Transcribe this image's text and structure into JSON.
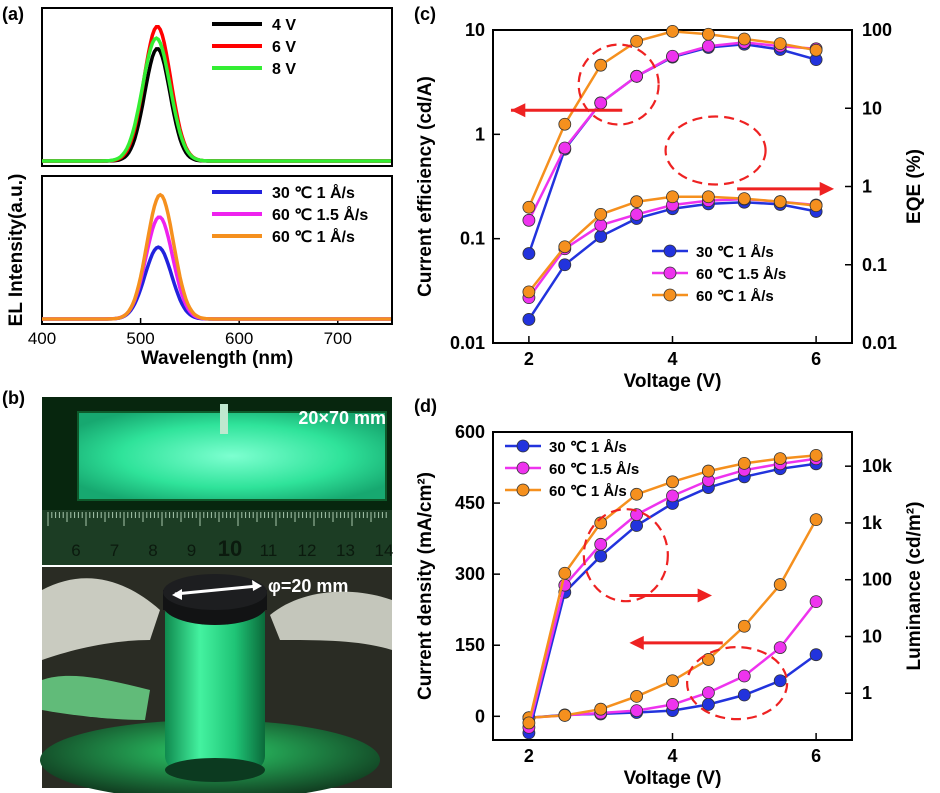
{
  "panels": {
    "a_label": "(a)",
    "b_label": "(b)",
    "c_label": "(c)",
    "d_label": "(d)"
  },
  "photos": {
    "flat_dimension_label": "20×70 mm",
    "ruler_numbers": [
      "6",
      "7",
      "8",
      "9",
      "10",
      "11",
      "12",
      "13",
      "14"
    ],
    "diameter_label": "φ=20 mm"
  },
  "chart_data": [
    {
      "id": "a_top",
      "type": "line",
      "ylabel": "EL Intensity(a.u.)",
      "xlim": [
        400,
        755
      ],
      "series": [
        {
          "name": "4 V",
          "color": "#000000",
          "peak": 517,
          "fwhm": 30,
          "amplitude": 0.76
        },
        {
          "name": "6 V",
          "color": "#ff0000",
          "peak": 517,
          "fwhm": 32,
          "amplitude": 0.91
        },
        {
          "name": "8 V",
          "color": "#33ee33",
          "peak": 516,
          "fwhm": 33,
          "amplitude": 0.83
        }
      ],
      "legend": "top-right"
    },
    {
      "id": "a_bottom",
      "type": "line",
      "xlabel": "Wavelength (nm)",
      "xlim": [
        400,
        755
      ],
      "xticks": [
        400,
        500,
        600,
        700
      ],
      "series": [
        {
          "name": "30 ℃  1  Å/s",
          "color": "#2222dd",
          "peak": 518,
          "fwhm": 32,
          "amplitude": 0.52
        },
        {
          "name": "60 ℃ 1.5 Å/s",
          "color": "#ee22ee",
          "peak": 519,
          "fwhm": 32,
          "amplitude": 0.74
        },
        {
          "name": "60 ℃  1  Å/s",
          "color": "#f5901e",
          "peak": 520,
          "fwhm": 32,
          "amplitude": 0.9
        }
      ],
      "legend": "top-right"
    },
    {
      "id": "c",
      "type": "line",
      "xlabel": "Voltage (V)",
      "ylabel": "Current efficiency (cd/A)",
      "y2label": "EQE (%)",
      "xlim": [
        1.5,
        6.5
      ],
      "xticks": [
        2,
        4,
        6
      ],
      "ylim": [
        0.01,
        10
      ],
      "ylog": true,
      "yticks": [
        "0.01",
        "0.1",
        "1",
        "10"
      ],
      "y2lim": [
        0.01,
        100
      ],
      "y2log": true,
      "y2ticks": [
        "0.01",
        "0.1",
        "1",
        "10",
        "100"
      ],
      "x": [
        2,
        2.5,
        3,
        3.5,
        4,
        4.5,
        5,
        5.5,
        6
      ],
      "series": [
        {
          "name": "30 ℃  1  Å/s",
          "color": "#2233dd",
          "axis": "y",
          "values": [
            0.072,
            0.72,
            2.0,
            3.6,
            5.5,
            6.8,
            7.3,
            6.5,
            5.2
          ]
        },
        {
          "name": "60 ℃ 1.5 Å/s",
          "color": "#ee33ee",
          "axis": "y",
          "values": [
            0.15,
            0.74,
            2.0,
            3.6,
            5.6,
            7.0,
            7.6,
            7.0,
            6.6
          ]
        },
        {
          "name": "60 ℃  1  Å/s",
          "color": "#f5901e",
          "axis": "y",
          "values": [
            0.2,
            1.25,
            4.6,
            7.8,
            9.7,
            9.1,
            8.2,
            7.4,
            6.4
          ]
        },
        {
          "name": "30 ℃  1  Å/s",
          "color": "#2233dd",
          "axis": "y2",
          "values": [
            0.02,
            0.1,
            0.23,
            0.39,
            0.52,
            0.6,
            0.63,
            0.59,
            0.48
          ]
        },
        {
          "name": "60 ℃ 1.5 Å/s",
          "color": "#ee33ee",
          "axis": "y2",
          "values": [
            0.038,
            0.16,
            0.32,
            0.44,
            0.58,
            0.66,
            0.69,
            0.64,
            0.58
          ]
        },
        {
          "name": "60 ℃  1  Å/s",
          "color": "#f5901e",
          "axis": "y2",
          "values": [
            0.045,
            0.17,
            0.44,
            0.64,
            0.74,
            0.74,
            0.7,
            0.64,
            0.57
          ]
        }
      ],
      "legend": "bottom-right"
    },
    {
      "id": "d",
      "type": "line",
      "xlabel": "Voltage (V)",
      "ylabel": "Current density (mA/cm²)",
      "y2label": "Luminance (cd/m²)",
      "xlim": [
        1.5,
        6.5
      ],
      "xticks": [
        2,
        4,
        6
      ],
      "ylim": [
        -50,
        600
      ],
      "yticks": [
        0,
        150,
        300,
        450,
        600
      ],
      "y2lim": [
        0.15,
        40000
      ],
      "y2log": true,
      "y2ticks": [
        "1",
        "10",
        "100",
        "1k",
        "10k"
      ],
      "x": [
        2,
        2.5,
        3,
        3.5,
        4,
        4.5,
        5,
        5.5,
        6
      ],
      "series": [
        {
          "name": "30 ℃  1  Å/s",
          "color": "#2233dd",
          "axis": "y",
          "values": [
            -3,
            3,
            5,
            8,
            12,
            25,
            45,
            75,
            130
          ]
        },
        {
          "name": "60 ℃ 1.5 Å/s",
          "color": "#ee33ee",
          "axis": "y",
          "values": [
            -3,
            2,
            7,
            12,
            25,
            50,
            85,
            145,
            242
          ]
        },
        {
          "name": "60 ℃  1  Å/s",
          "color": "#f5901e",
          "axis": "y",
          "values": [
            -3,
            2,
            15,
            42,
            75,
            120,
            190,
            278,
            415
          ]
        },
        {
          "name": "30 ℃  1  Å/s",
          "color": "#2233dd",
          "axis": "y2",
          "values": [
            0.2,
            60,
            260,
            900,
            2200,
            4200,
            6500,
            9000,
            11000
          ]
        },
        {
          "name": "60 ℃ 1.5 Å/s",
          "color": "#ee33ee",
          "axis": "y2",
          "values": [
            0.25,
            80,
            420,
            1400,
            3000,
            5600,
            8500,
            11000,
            13500
          ]
        },
        {
          "name": "60 ℃  1  Å/s",
          "color": "#f5901e",
          "axis": "y2",
          "values": [
            0.3,
            130,
            1000,
            3200,
            5300,
            8200,
            11200,
            13600,
            15500
          ]
        }
      ],
      "legend": "top-left"
    }
  ]
}
